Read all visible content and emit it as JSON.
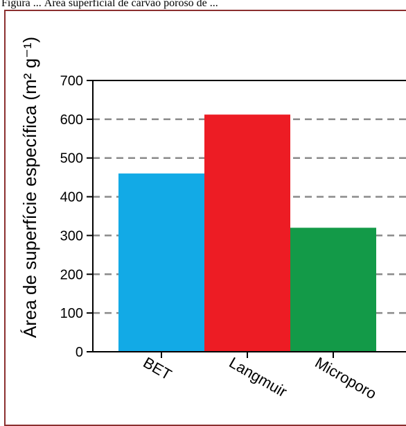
{
  "caption": "Figura ... Área superficial de carvão poroso de ...",
  "chart_data": {
    "type": "bar",
    "categories": [
      "BET",
      "Langmuir",
      "Microporo"
    ],
    "values": [
      460,
      612,
      320
    ],
    "colors": [
      "#12aae6",
      "#ed1c24",
      "#139a48"
    ],
    "title": "",
    "xlabel": "",
    "ylabel": "Área de superfície específica (m² g⁻¹)",
    "ylim": [
      0,
      700
    ],
    "yticks": [
      0,
      100,
      200,
      300,
      400,
      500,
      600,
      700
    ],
    "grid": "dashed horizontal gridlines at each y tick",
    "legend": "none"
  }
}
